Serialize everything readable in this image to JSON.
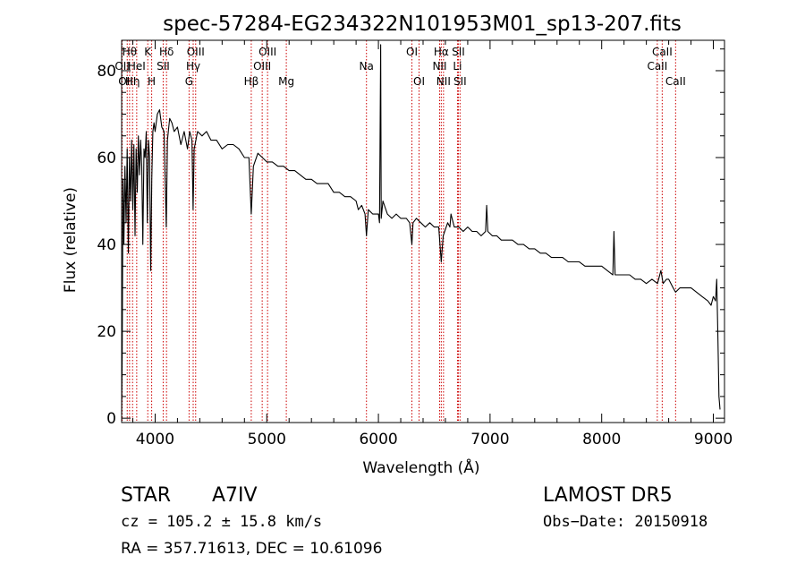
{
  "chart_data": {
    "type": "line",
    "title": "spec-57284-EG234322N101953M01_sp13-207.fits",
    "xlabel": "Wavelength (Å)",
    "ylabel": "Flux (relative)",
    "xlim": [
      3700,
      9100
    ],
    "ylim": [
      -1,
      87
    ],
    "xticks": [
      4000,
      5000,
      6000,
      7000,
      8000,
      9000
    ],
    "yticks": [
      0,
      20,
      40,
      60,
      80
    ],
    "grid": false,
    "series": [
      {
        "color": "#000000",
        "points": [
          [
            3700,
            1
          ],
          [
            3705,
            15
          ],
          [
            3712,
            55
          ],
          [
            3720,
            40
          ],
          [
            3730,
            58
          ],
          [
            3740,
            45
          ],
          [
            3750,
            62
          ],
          [
            3760,
            38
          ],
          [
            3770,
            60
          ],
          [
            3780,
            50
          ],
          [
            3790,
            64
          ],
          [
            3800,
            48
          ],
          [
            3810,
            63
          ],
          [
            3820,
            42
          ],
          [
            3830,
            62
          ],
          [
            3840,
            52
          ],
          [
            3850,
            65
          ],
          [
            3860,
            56
          ],
          [
            3870,
            64
          ],
          [
            3880,
            58
          ],
          [
            3890,
            40
          ],
          [
            3900,
            62
          ],
          [
            3910,
            60
          ],
          [
            3920,
            66
          ],
          [
            3930,
            45
          ],
          [
            3940,
            64
          ],
          [
            3950,
            60
          ],
          [
            3960,
            34
          ],
          [
            3970,
            55
          ],
          [
            3980,
            66
          ],
          [
            3990,
            68
          ],
          [
            4000,
            66
          ],
          [
            4020,
            70
          ],
          [
            4040,
            71
          ],
          [
            4060,
            67
          ],
          [
            4080,
            66
          ],
          [
            4100,
            44
          ],
          [
            4110,
            64
          ],
          [
            4130,
            69
          ],
          [
            4150,
            68
          ],
          [
            4170,
            66
          ],
          [
            4200,
            67
          ],
          [
            4230,
            63
          ],
          [
            4260,
            66
          ],
          [
            4290,
            62
          ],
          [
            4310,
            66
          ],
          [
            4330,
            64
          ],
          [
            4340,
            48
          ],
          [
            4350,
            62
          ],
          [
            4380,
            66
          ],
          [
            4420,
            65
          ],
          [
            4460,
            66
          ],
          [
            4500,
            64
          ],
          [
            4550,
            64
          ],
          [
            4600,
            62
          ],
          [
            4650,
            63
          ],
          [
            4700,
            63
          ],
          [
            4750,
            62
          ],
          [
            4800,
            60
          ],
          [
            4840,
            60
          ],
          [
            4861,
            47
          ],
          [
            4880,
            58
          ],
          [
            4920,
            61
          ],
          [
            4960,
            60
          ],
          [
            5000,
            59
          ],
          [
            5050,
            59
          ],
          [
            5100,
            58
          ],
          [
            5150,
            58
          ],
          [
            5200,
            57
          ],
          [
            5250,
            57
          ],
          [
            5300,
            56
          ],
          [
            5350,
            55
          ],
          [
            5400,
            55
          ],
          [
            5450,
            54
          ],
          [
            5500,
            54
          ],
          [
            5550,
            54
          ],
          [
            5600,
            52
          ],
          [
            5650,
            52
          ],
          [
            5700,
            51
          ],
          [
            5750,
            51
          ],
          [
            5800,
            50
          ],
          [
            5820,
            48
          ],
          [
            5850,
            49
          ],
          [
            5880,
            47
          ],
          [
            5893,
            42
          ],
          [
            5910,
            48
          ],
          [
            5950,
            47
          ],
          [
            6000,
            47
          ],
          [
            6010,
            45
          ],
          [
            6020,
            86
          ],
          [
            6025,
            46
          ],
          [
            6040,
            50
          ],
          [
            6080,
            47
          ],
          [
            6120,
            46
          ],
          [
            6160,
            47
          ],
          [
            6200,
            46
          ],
          [
            6250,
            46
          ],
          [
            6280,
            45
          ],
          [
            6300,
            40
          ],
          [
            6310,
            45
          ],
          [
            6340,
            46
          ],
          [
            6380,
            45
          ],
          [
            6420,
            44
          ],
          [
            6460,
            45
          ],
          [
            6500,
            44
          ],
          [
            6540,
            44
          ],
          [
            6563,
            36
          ],
          [
            6580,
            42
          ],
          [
            6620,
            45
          ],
          [
            6640,
            44
          ],
          [
            6650,
            47
          ],
          [
            6680,
            44
          ],
          [
            6720,
            44
          ],
          [
            6760,
            43
          ],
          [
            6800,
            44
          ],
          [
            6840,
            43
          ],
          [
            6880,
            43
          ],
          [
            6920,
            42
          ],
          [
            6960,
            43
          ],
          [
            6970,
            49
          ],
          [
            6980,
            43
          ],
          [
            7020,
            42
          ],
          [
            7060,
            42
          ],
          [
            7100,
            41
          ],
          [
            7150,
            41
          ],
          [
            7200,
            41
          ],
          [
            7250,
            40
          ],
          [
            7300,
            40
          ],
          [
            7350,
            39
          ],
          [
            7400,
            39
          ],
          [
            7450,
            38
          ],
          [
            7500,
            38
          ],
          [
            7550,
            37
          ],
          [
            7600,
            37
          ],
          [
            7650,
            37
          ],
          [
            7700,
            36
          ],
          [
            7750,
            36
          ],
          [
            7800,
            36
          ],
          [
            7850,
            35
          ],
          [
            7900,
            35
          ],
          [
            7950,
            35
          ],
          [
            8000,
            35
          ],
          [
            8050,
            34
          ],
          [
            8100,
            33
          ],
          [
            8110,
            43
          ],
          [
            8120,
            33
          ],
          [
            8150,
            33
          ],
          [
            8200,
            33
          ],
          [
            8250,
            33
          ],
          [
            8300,
            32
          ],
          [
            8350,
            32
          ],
          [
            8400,
            31
          ],
          [
            8450,
            32
          ],
          [
            8500,
            31
          ],
          [
            8530,
            34
          ],
          [
            8550,
            31
          ],
          [
            8580,
            32
          ],
          [
            8600,
            32
          ],
          [
            8640,
            30
          ],
          [
            8662,
            29
          ],
          [
            8700,
            30
          ],
          [
            8750,
            30
          ],
          [
            8800,
            30
          ],
          [
            8850,
            29
          ],
          [
            8900,
            28
          ],
          [
            8950,
            27
          ],
          [
            8980,
            26
          ],
          [
            9000,
            28
          ],
          [
            9020,
            27
          ],
          [
            9030,
            32
          ],
          [
            9040,
            20
          ],
          [
            9050,
            5
          ],
          [
            9060,
            2
          ]
        ]
      }
    ],
    "lines": [
      {
        "x": 3705,
        "labels": [
          "OII"
        ]
      },
      {
        "x": 3750,
        "labels": [
          "OII",
          "OIII"
        ]
      },
      {
        "x": 3771,
        "labels": [
          "Hθ"
        ]
      },
      {
        "x": 3798,
        "labels": [
          "Hη"
        ]
      },
      {
        "x": 3835,
        "labels": [
          "HeI"
        ]
      },
      {
        "x": 3934,
        "labels": [
          "K"
        ]
      },
      {
        "x": 3969,
        "labels": [
          "H"
        ]
      },
      {
        "x": 4072,
        "labels": [
          "SII"
        ]
      },
      {
        "x": 4102,
        "labels": [
          "Hδ"
        ]
      },
      {
        "x": 4304,
        "labels": [
          "G"
        ]
      },
      {
        "x": 4341,
        "labels": [
          "Hγ"
        ]
      },
      {
        "x": 4363,
        "labels": [
          "OIII"
        ]
      },
      {
        "x": 4861,
        "labels": [
          "Hβ"
        ]
      },
      {
        "x": 4959,
        "labels": [
          "OIII"
        ]
      },
      {
        "x": 5007,
        "labels": [
          "OIII"
        ]
      },
      {
        "x": 5175,
        "labels": [
          "Mg"
        ]
      },
      {
        "x": 5893,
        "labels": [
          "Na"
        ]
      },
      {
        "x": 6300,
        "labels": [
          "OI"
        ]
      },
      {
        "x": 6364,
        "labels": [
          "OI"
        ]
      },
      {
        "x": 6548,
        "labels": [
          "NII"
        ]
      },
      {
        "x": 6563,
        "labels": [
          "Hα"
        ]
      },
      {
        "x": 6583,
        "labels": [
          "NII"
        ]
      },
      {
        "x": 6708,
        "labels": [
          "Li"
        ]
      },
      {
        "x": 6716,
        "labels": [
          "SII"
        ]
      },
      {
        "x": 6731,
        "labels": [
          "SII"
        ]
      },
      {
        "x": 8498,
        "labels": [
          "CaII"
        ]
      },
      {
        "x": 8542,
        "labels": [
          "CaII"
        ]
      },
      {
        "x": 8662,
        "labels": [
          "CaII"
        ]
      }
    ],
    "line_color": "#cc0000",
    "line_label_rows": [
      {
        "y_frac": 0,
        "items": [
          {
            "text": "Hθ",
            "x": 3771
          },
          {
            "text": "K",
            "x": 3934
          },
          {
            "text": "Hδ",
            "x": 4102
          },
          {
            "text": "OIII",
            "x": 4363
          },
          {
            "text": "OIII",
            "x": 5007
          },
          {
            "text": "OI",
            "x": 6300
          },
          {
            "text": "Hα",
            "x": 6563
          },
          {
            "text": "SII",
            "x": 6716
          },
          {
            "text": "CaII",
            "x": 8542
          }
        ]
      },
      {
        "y_frac": 1,
        "items": [
          {
            "text": "OII",
            "x": 3705
          },
          {
            "text": "HeI",
            "x": 3835
          },
          {
            "text": "SII",
            "x": 4072
          },
          {
            "text": "Hγ",
            "x": 4341
          },
          {
            "text": "OIII",
            "x": 4959
          },
          {
            "text": "Na",
            "x": 5893
          },
          {
            "text": "NII",
            "x": 6548
          },
          {
            "text": "Li",
            "x": 6708
          },
          {
            "text": "CaII",
            "x": 8498
          }
        ]
      },
      {
        "y_frac": 2,
        "items": [
          {
            "text": "OIII",
            "x": 3750
          },
          {
            "text": "Hη",
            "x": 3798
          },
          {
            "text": "H",
            "x": 3969
          },
          {
            "text": "G",
            "x": 4304
          },
          {
            "text": "Hβ",
            "x": 4861
          },
          {
            "text": "Mg",
            "x": 5175
          },
          {
            "text": "OI",
            "x": 6364
          },
          {
            "text": "NII",
            "x": 6583
          },
          {
            "text": "SII",
            "x": 6731
          },
          {
            "text": "CaII",
            "x": 8662
          }
        ]
      }
    ]
  },
  "info": {
    "class": "STAR",
    "subclass": "A7IV",
    "survey": "LAMOST DR5",
    "cz": "cz = 105.2 ± 15.8 km/s",
    "obs_date": "Obs−Date: 20150918",
    "coords": "RA = 357.71613, DEC =  10.61096"
  }
}
